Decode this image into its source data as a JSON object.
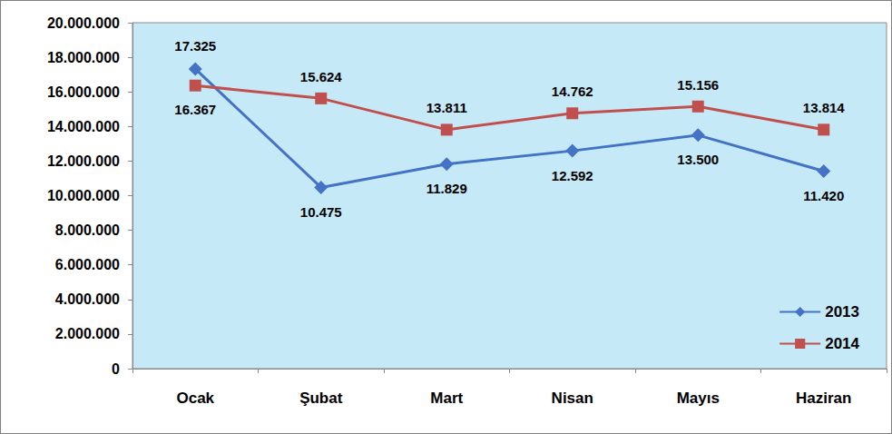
{
  "chart_data": {
    "type": "line",
    "categories": [
      "Ocak",
      "Şubat",
      "Mart",
      "Nisan",
      "Mayıs",
      "Haziran"
    ],
    "series": [
      {
        "name": "2013",
        "color": "#4472C4",
        "marker": "diamond",
        "values": [
          17325000,
          10475000,
          11829000,
          12592000,
          13500000,
          11420000
        ],
        "value_labels": [
          "17.325",
          "10.475",
          "11.829",
          "12.592",
          "13.500",
          "11.420"
        ]
      },
      {
        "name": "2014",
        "color": "#C0504D",
        "marker": "square",
        "values": [
          16367000,
          15624000,
          13811000,
          14762000,
          15156000,
          13814000
        ],
        "value_labels": [
          "16.367",
          "15.624",
          "13.811",
          "14.762",
          "15.156",
          "13.814"
        ]
      }
    ],
    "ylim": [
      0,
      20000000
    ],
    "yticks": [
      0,
      {
        "value": 2000000,
        "label": "2.000.000"
      },
      {
        "value": 4000000,
        "label": "4.000.000"
      },
      {
        "value": 6000000,
        "label": "6.000.000"
      },
      {
        "value": 8000000,
        "label": "8.000.000"
      },
      {
        "value": 10000000,
        "label": "10.000.000"
      },
      {
        "value": 12000000,
        "label": "12.000.000"
      },
      {
        "value": 14000000,
        "label": "14.000.000"
      },
      {
        "value": 16000000,
        "label": "16.000.000"
      },
      {
        "value": 18000000,
        "label": "18.000.000"
      },
      {
        "value": 20000000,
        "label": "20.000.000"
      }
    ],
    "grid": false,
    "legend": "lower right",
    "data_labels": true
  }
}
